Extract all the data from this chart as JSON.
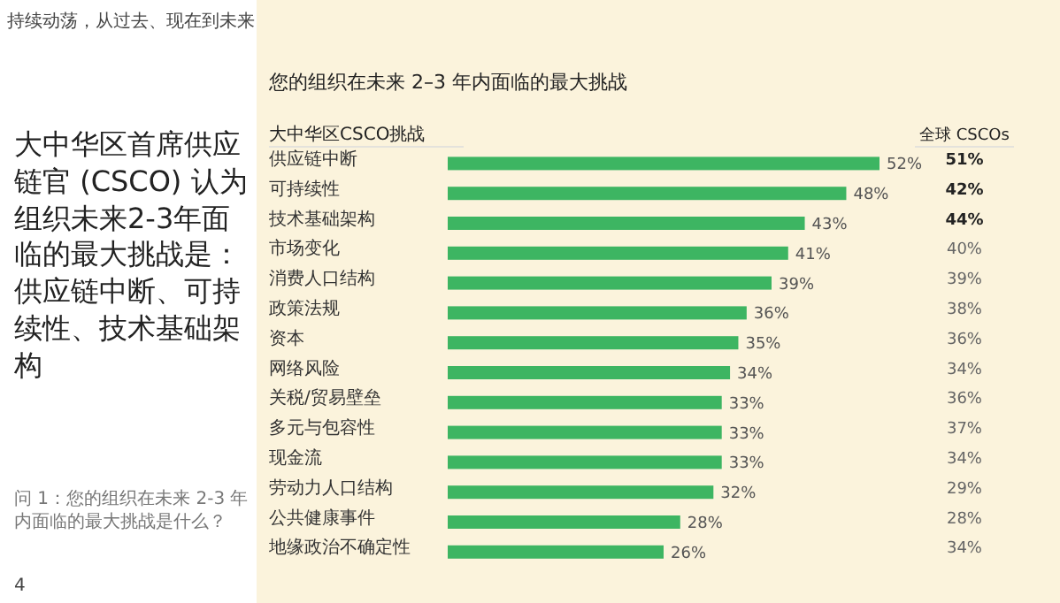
{
  "chart_data": [
    {
      "type": "bar",
      "orientation": "horizontal",
      "title": "您的组织在未来 2–3 年内面临的最大挑战",
      "ylabel": "大中华区CSCO挑战",
      "categories": [
        "供应链中断",
        "可持续性",
        "技术基础架构",
        "市场变化",
        "消费人口结构",
        "政策法规",
        "资本",
        "网络风险",
        "关税/贸易壁垒",
        "多元与包容性",
        "现金流",
        "劳动力人口结构",
        "公共健康事件",
        "地缘政治不确定性"
      ],
      "series": [
        {
          "color": "#3db562",
          "values": [
            52,
            48,
            43,
            41,
            39,
            36,
            35,
            34,
            33,
            33,
            33,
            32,
            28,
            26
          ],
          "value_labels": [
            "52%",
            "48%",
            "43%",
            "41%",
            "39%",
            "36%",
            "35%",
            "34%",
            "33%",
            "33%",
            "33%",
            "32%",
            "28%",
            "26%"
          ]
        }
      ],
      "annotations": [
        "持续动荡，从过去、现在到未来",
        "大中华区首席供应链官 (CSCO) 认为组织未来2-3年面临的最大挑战是：供应链中断、可持续性、技术基础架构",
        "问 1：您的组织在未来 2-3 年内面临的最大挑战是什么？",
        "4"
      ]
    },
    {
      "type": "other",
      "title": "全球 CSCOs",
      "values": [
        51,
        42,
        44,
        40,
        39,
        38,
        36,
        34,
        36,
        37,
        34,
        29,
        28,
        34
      ],
      "value_labels": [
        "**51%**",
        "**42%**",
        "**44%**",
        "40%",
        "39%",
        "38%",
        "36%",
        "34%",
        "36%",
        "37%",
        "34%",
        "29%",
        "28%",
        "34%"
      ]
    }
  ]
}
